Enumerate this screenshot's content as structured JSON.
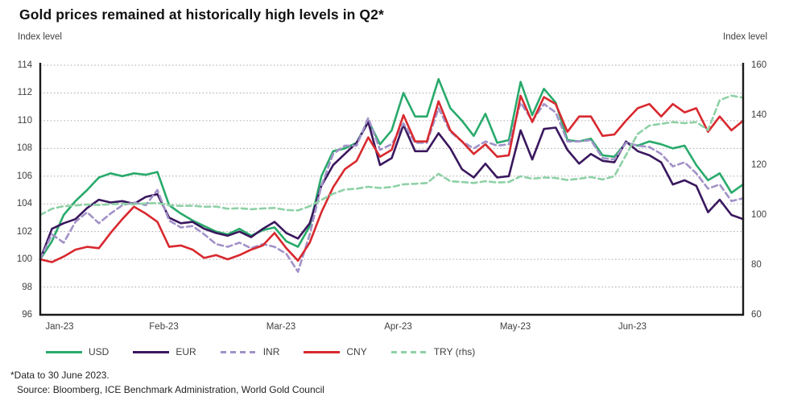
{
  "title": "Gold prices remained at historically high levels in Q2*",
  "axis_left_label": "Index level",
  "axis_right_label": "Index level",
  "footnote": "*Data to 30 June 2023.",
  "source": "Source: Bloomberg, ICE Benchmark Administration, World Gold Council",
  "colors": {
    "grid": "#ababab",
    "axis": "#1a1a1a",
    "tick_text": "#3f4042"
  },
  "chart_data": {
    "type": "line",
    "title": "Gold prices remained at historically high levels in Q2*",
    "x_tick_labels": [
      "Jan-23",
      "Feb-23",
      "Mar-23",
      "Apr-23",
      "May-23",
      "Jun-23"
    ],
    "x_note": "61 points evenly spaced, Jan 1 to Jun 30 2023 (~3-day intervals)",
    "grid": "dotted-horizontal",
    "legend_position": "bottom",
    "y_left": {
      "label": "Index level",
      "min": 96,
      "max": 114,
      "ticks": [
        114,
        112,
        110,
        108,
        106,
        104,
        102,
        100,
        98,
        96
      ]
    },
    "y_right": {
      "label": "Index level",
      "min": 60,
      "max": 160,
      "ticks": [
        160,
        140,
        120,
        100,
        80,
        60
      ]
    },
    "series": [
      {
        "name": "USD",
        "axis": "left",
        "color": "#29aa6b",
        "dash": null,
        "values": [
          100,
          101.3,
          103.2,
          104.2,
          105,
          105.9,
          106.2,
          106,
          106.2,
          106.1,
          106.3,
          103.9,
          103.3,
          102.8,
          102.4,
          102,
          101.8,
          102.2,
          101.7,
          102.1,
          102.3,
          101.3,
          100.9,
          102.4,
          106,
          107.8,
          108,
          108.4,
          110,
          108.3,
          109.3,
          112,
          110.3,
          110.3,
          113,
          110.9,
          110,
          108.9,
          110.5,
          108.4,
          108.6,
          112.8,
          110.4,
          112.3,
          111.3,
          108.6,
          108.5,
          108.7,
          107.5,
          107.4,
          108.4,
          108.2,
          108.5,
          108.3,
          108,
          108.2,
          106.8,
          105.7,
          106.2,
          104.8,
          105.4
        ]
      },
      {
        "name": "EUR",
        "axis": "left",
        "color": "#3a175e",
        "dash": null,
        "values": [
          100,
          102.2,
          102.6,
          102.9,
          103.7,
          104.3,
          104.1,
          104.2,
          104,
          104.5,
          104.7,
          103,
          102.6,
          102.7,
          102.2,
          101.9,
          101.7,
          102,
          101.6,
          102.2,
          102.7,
          101.9,
          101.5,
          102.6,
          105.3,
          106.8,
          107.6,
          108.4,
          109.9,
          106.8,
          107.3,
          109.7,
          107.8,
          107.8,
          109.1,
          108,
          106.5,
          105.9,
          106.9,
          105.9,
          106,
          109.3,
          107.2,
          109.4,
          109.5,
          107.9,
          106.9,
          107.6,
          107.1,
          107,
          108.5,
          107.8,
          107.5,
          107,
          105.4,
          105.7,
          105.3,
          103.4,
          104.3,
          103.2,
          102.9
        ]
      },
      {
        "name": "INR",
        "axis": "left",
        "color": "#a292c8",
        "dash": [
          7,
          4.5
        ],
        "values": [
          100,
          101.8,
          101.2,
          102.7,
          103.4,
          102.6,
          103.3,
          103.9,
          104.1,
          103.9,
          105,
          102.8,
          102.3,
          102.4,
          101.8,
          101.1,
          100.9,
          101.2,
          100.8,
          101.1,
          100.9,
          100.4,
          99.1,
          101.8,
          105.3,
          107.6,
          108.2,
          108.2,
          110.2,
          107.9,
          108.3,
          109.8,
          108.4,
          108.4,
          110.9,
          109.2,
          108.5,
          108,
          108.5,
          108.2,
          108.3,
          111.3,
          110,
          111.2,
          110.6,
          108.5,
          108.5,
          108.6,
          107.3,
          107.2,
          108.4,
          108.2,
          108.1,
          107.6,
          106.7,
          107,
          106.2,
          105.1,
          105.4,
          104.2,
          104.4
        ]
      },
      {
        "name": "CNY",
        "axis": "left",
        "color": "#d8292f",
        "dash": null,
        "values": [
          100,
          99.8,
          100.2,
          100.7,
          100.9,
          100.8,
          101.9,
          102.9,
          103.8,
          103.3,
          102.7,
          100.9,
          101,
          100.7,
          100.1,
          100.3,
          100,
          100.3,
          100.7,
          101,
          101.9,
          100.8,
          99.9,
          101.2,
          103.4,
          105.2,
          106.5,
          107.1,
          108.8,
          107.4,
          107.9,
          110.4,
          108.5,
          108.5,
          111.4,
          109.3,
          108.5,
          107.6,
          108.3,
          107.4,
          107.5,
          111.8,
          109.9,
          111.7,
          111.2,
          109.2,
          110.3,
          110.3,
          108.9,
          109,
          110,
          110.9,
          111.2,
          110.3,
          111.2,
          110.6,
          110.9,
          109.2,
          110.3,
          109.3,
          110
        ]
      },
      {
        "name": "TRY (rhs)",
        "axis": "right",
        "color": "#8ed1a6",
        "dash": [
          7,
          4.5
        ],
        "values": [
          100,
          102.5,
          103.5,
          103.8,
          104.2,
          104,
          104.3,
          104.5,
          104.3,
          104.6,
          104.8,
          103.9,
          103.6,
          103.7,
          103.3,
          103.4,
          102.5,
          102.7,
          102.3,
          102.6,
          102.8,
          102,
          101.8,
          103.5,
          106,
          108.5,
          110.2,
          110.5,
          111.3,
          110.8,
          111.2,
          112.3,
          112.5,
          112.8,
          116.5,
          113.5,
          113.2,
          112.8,
          113.5,
          113,
          113.2,
          115.5,
          114.5,
          115,
          114.8,
          114,
          114.5,
          115.2,
          114.2,
          115.5,
          124,
          132.5,
          135.8,
          136.5,
          137.2,
          136.8,
          137.2,
          134,
          146,
          147.8,
          147
        ]
      }
    ]
  }
}
